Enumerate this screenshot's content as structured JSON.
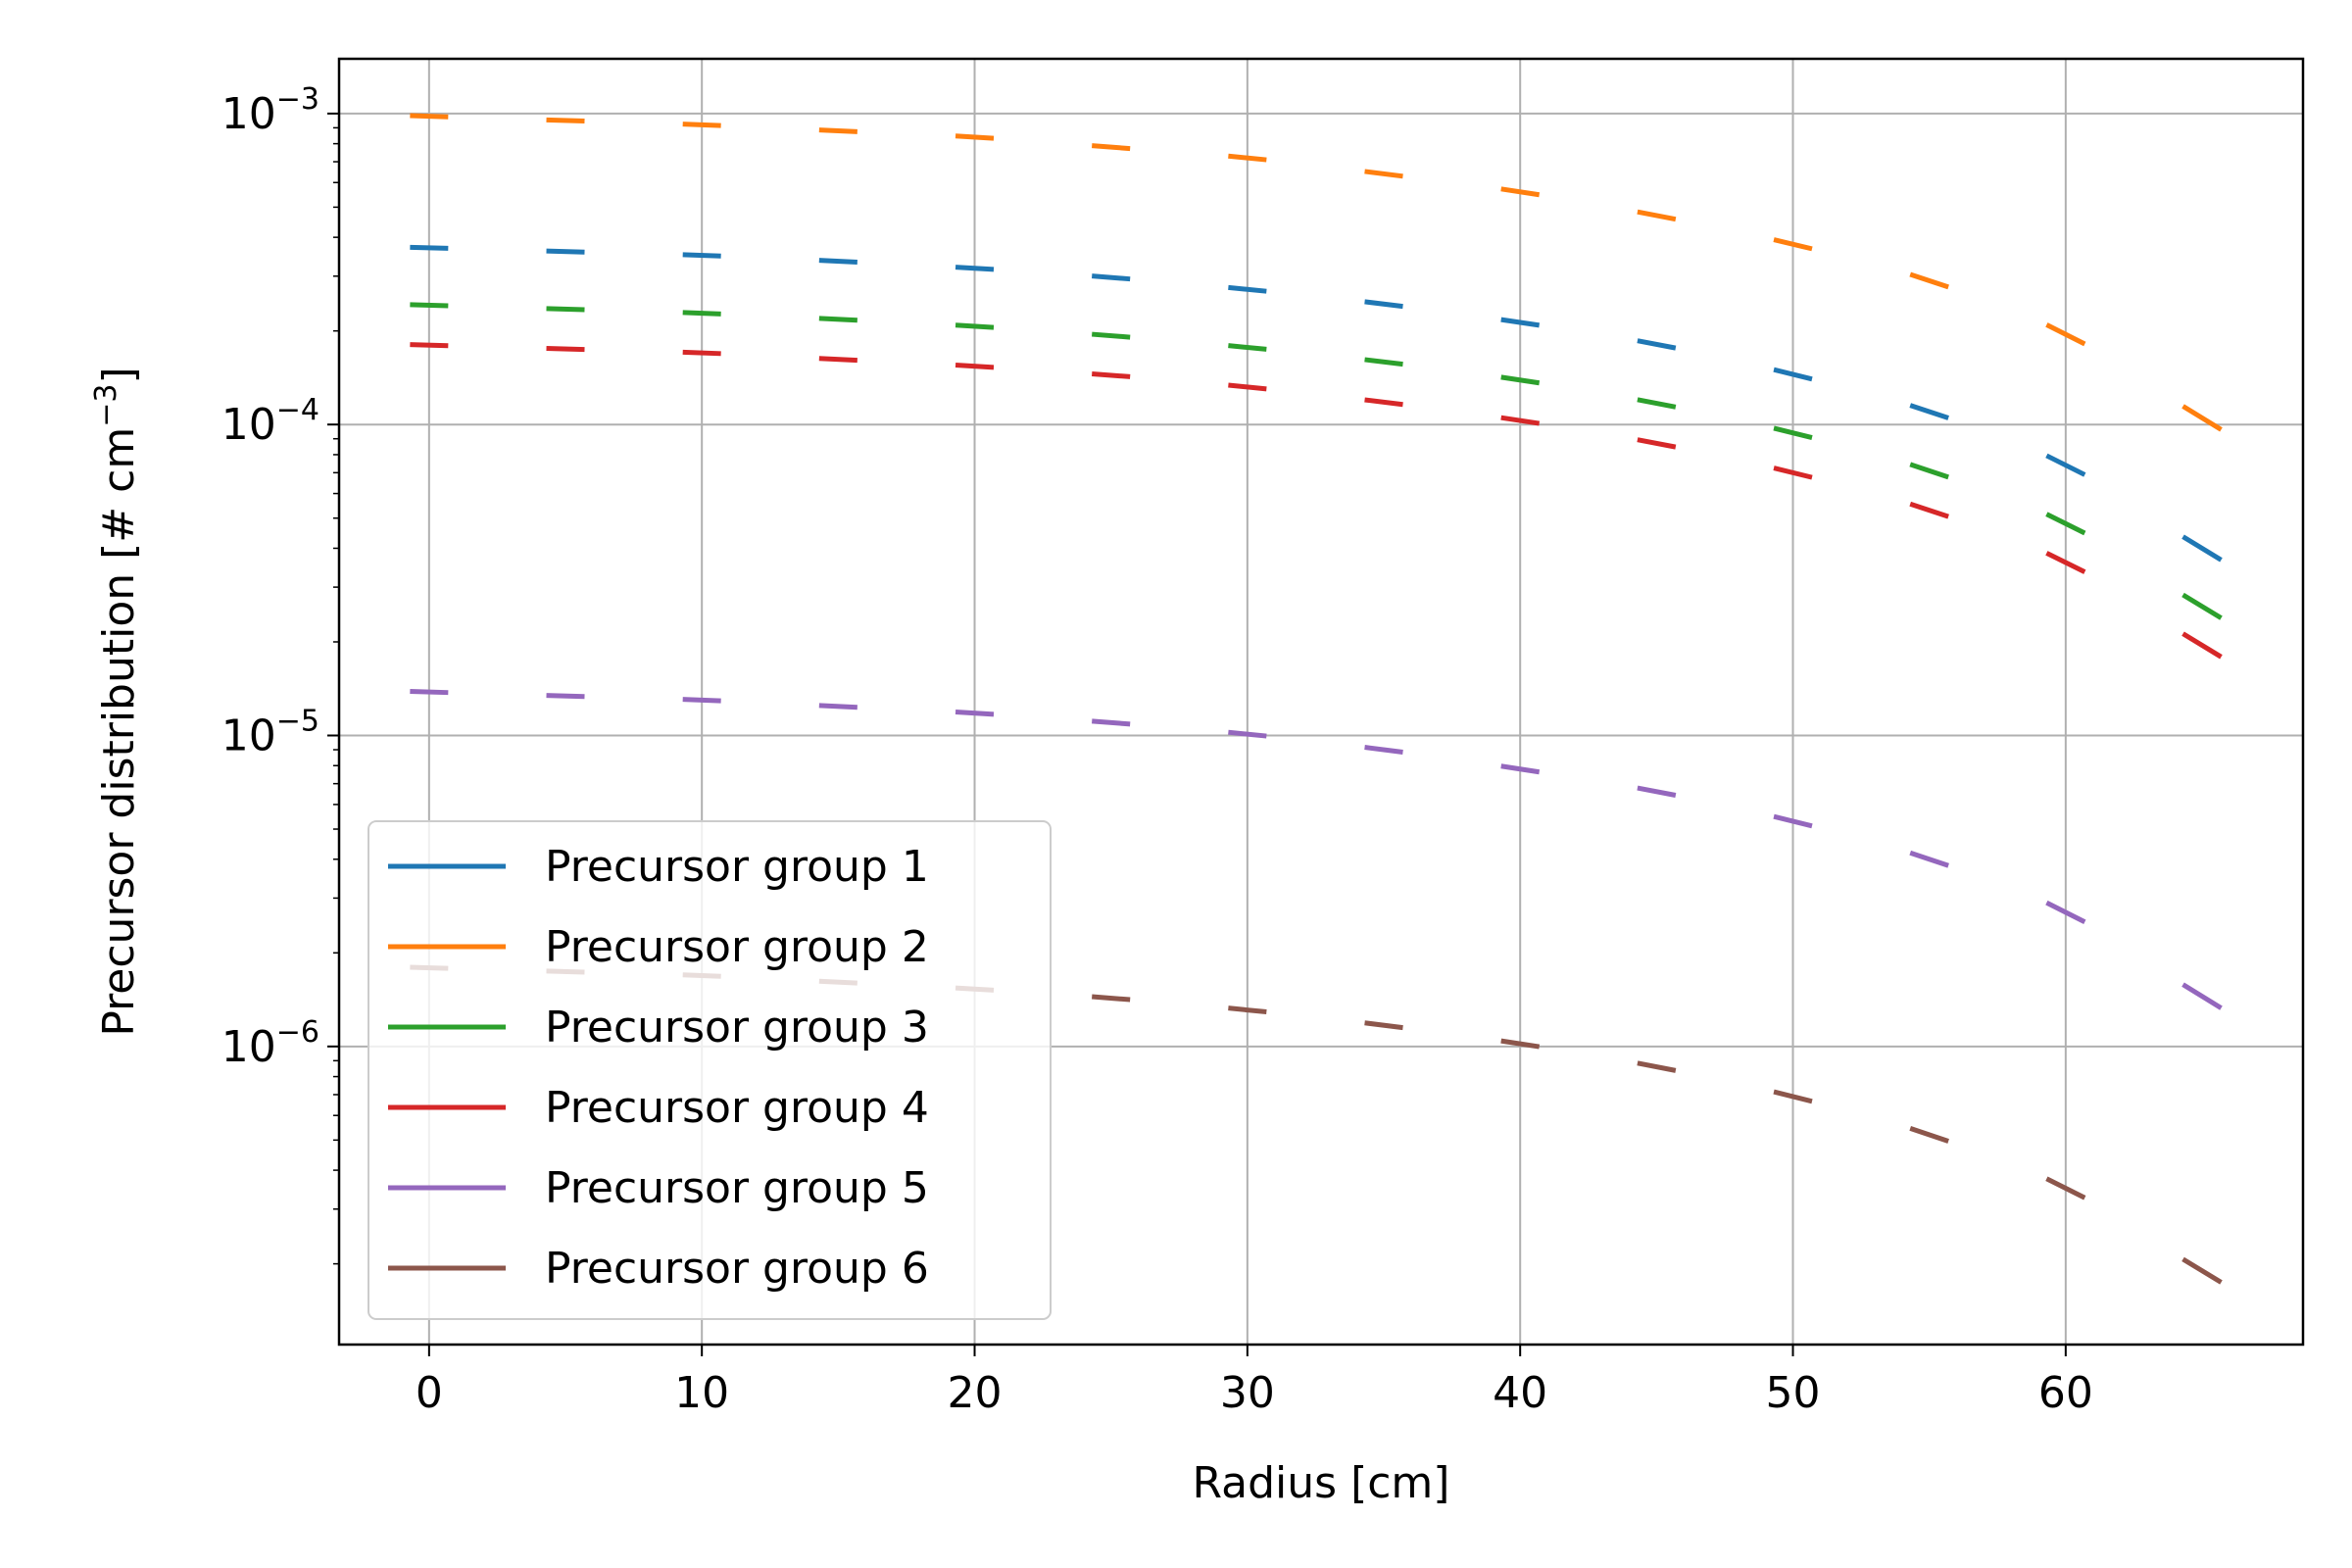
{
  "chart_data": {
    "type": "line",
    "title": "",
    "xlabel": "Radius [cm]",
    "ylabel": "Precursor distribution [# cm",
    "ylabel_sup": "−3",
    "ylabel_end": "]",
    "xlim": [
      -3.3,
      68.7
    ],
    "ylim": [
      1.1e-07,
      0.0015
    ],
    "yscale": "log",
    "grid": true,
    "legend_position": "lower-left",
    "line_style": "short segments at each node (x ± 0.7 cm)",
    "x_ticks": [
      0,
      10,
      20,
      30,
      40,
      50,
      60
    ],
    "x_tick_labels": [
      "0",
      "10",
      "20",
      "30",
      "40",
      "50",
      "60"
    ],
    "y_ticks": [
      {
        "value": 1e-06,
        "base": "10",
        "exp": "−6"
      },
      {
        "value": 1e-05,
        "base": "10",
        "exp": "−5"
      },
      {
        "value": 0.0001,
        "base": "10",
        "exp": "−4"
      },
      {
        "value": 0.001,
        "base": "10",
        "exp": "−3"
      }
    ],
    "x": [
      0,
      5,
      10,
      15,
      20,
      25,
      30,
      35,
      40,
      45,
      50,
      55,
      60,
      65
    ],
    "series": [
      {
        "name": "Precursor group 1",
        "color": "#1f77b4",
        "values": [
          0.00037,
          0.00036,
          0.00035,
          0.000335,
          0.000318,
          0.000297,
          0.000272,
          0.000244,
          0.000213,
          0.000181,
          0.000145,
          0.00011,
          7.4e-05,
          4e-05
        ]
      },
      {
        "name": "Precursor group 2",
        "color": "#ff7f0e",
        "values": [
          0.00098,
          0.00095,
          0.00092,
          0.00088,
          0.00084,
          0.00078,
          0.00072,
          0.00064,
          0.00056,
          0.00047,
          0.00038,
          0.00029,
          0.000195,
          0.000105
        ]
      },
      {
        "name": "Precursor group 3",
        "color": "#2ca02c",
        "values": [
          0.000242,
          0.000235,
          0.000228,
          0.000218,
          0.000207,
          0.000193,
          0.000177,
          0.000159,
          0.000139,
          0.000117,
          9.4e-05,
          7.1e-05,
          4.8e-05,
          2.6e-05
        ]
      },
      {
        "name": "Precursor group 4",
        "color": "#d62728",
        "values": [
          0.00018,
          0.000175,
          0.00017,
          0.000162,
          0.000154,
          0.000144,
          0.000132,
          0.000118,
          0.000103,
          8.7e-05,
          7e-05,
          5.3e-05,
          3.6e-05,
          1.95e-05
        ]
      },
      {
        "name": "Precursor group 5",
        "color": "#9467bd",
        "values": [
          1.38e-05,
          1.34e-05,
          1.3e-05,
          1.24e-05,
          1.18e-05,
          1.1e-05,
          1.01e-05,
          9e-06,
          7.8e-06,
          6.6e-06,
          5.3e-06,
          4e-06,
          2.7e-06,
          1.45e-06
        ]
      },
      {
        "name": "Precursor group 6",
        "color": "#8c564b",
        "values": [
          1.79e-06,
          1.74e-06,
          1.69e-06,
          1.61e-06,
          1.53e-06,
          1.43e-06,
          1.31e-06,
          1.17e-06,
          1.02e-06,
          8.6e-07,
          6.9e-07,
          5.2e-07,
          3.5e-07,
          1.9e-07
        ]
      }
    ]
  }
}
